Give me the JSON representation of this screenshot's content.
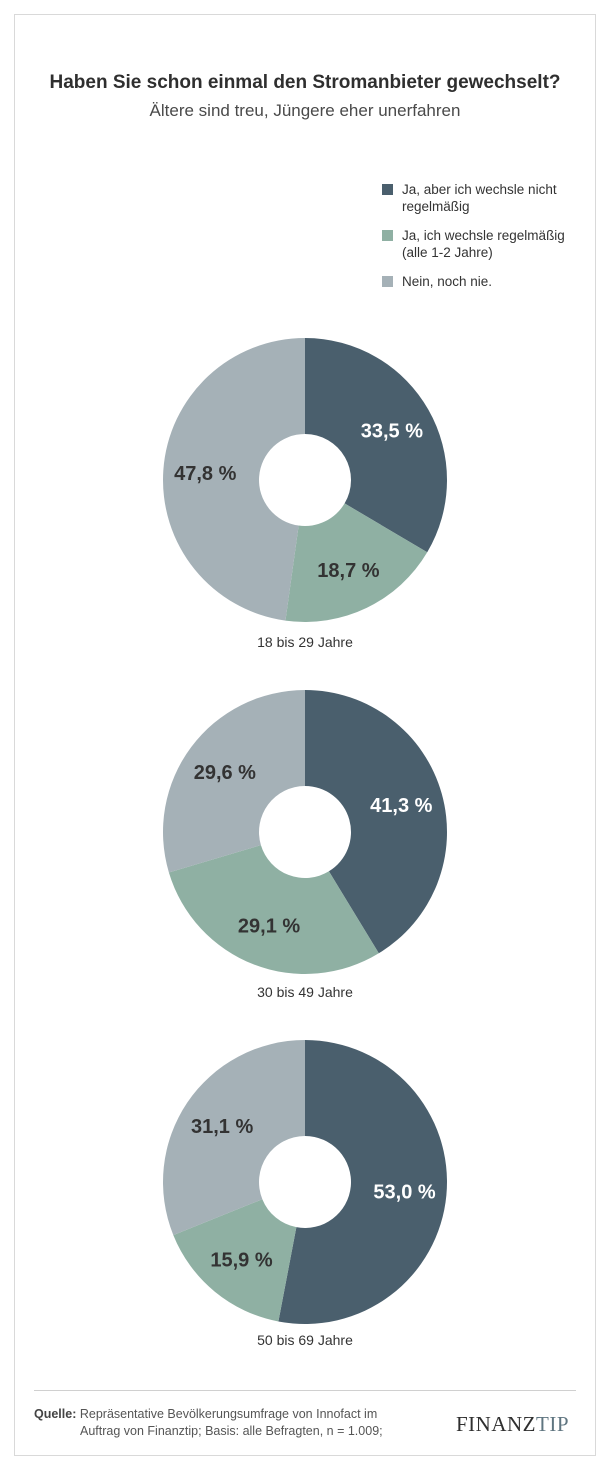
{
  "title": "Haben Sie schon einmal den Stromanbieter gewechselt?",
  "subtitle": "Ältere sind treu, Jüngere eher unerfahren",
  "legend": [
    {
      "label_line1": "Ja, aber ich wechsle nicht",
      "label_line2": "regelmäßig",
      "color": "#4a5f6d"
    },
    {
      "label_line1": "Ja, ich wechsle regelmäßig",
      "label_line2": "(alle 1-2 Jahre)",
      "color": "#8fb0a3"
    },
    {
      "label_line1": "Nein, noch nie.",
      "label_line2": "",
      "color": "#a5b1b7"
    }
  ],
  "chart_data": [
    {
      "type": "pie",
      "donut": true,
      "caption": "18 bis 29 Jahre",
      "categories": [
        "Ja, aber ich wechsle nicht regelmäßig",
        "Ja, ich wechsle regelmäßig (alle 1-2 Jahre)",
        "Nein, noch nie."
      ],
      "values": [
        33.5,
        18.7,
        47.8
      ],
      "labels": [
        "33,5 %",
        "18,7 %",
        "47,8 %"
      ],
      "colors": [
        "#4a5f6d",
        "#8fb0a3",
        "#a5b1b7"
      ]
    },
    {
      "type": "pie",
      "donut": true,
      "caption": "30 bis 49 Jahre",
      "categories": [
        "Ja, aber ich wechsle nicht regelmäßig",
        "Ja, ich wechsle regelmäßig (alle 1-2 Jahre)",
        "Nein, noch nie."
      ],
      "values": [
        41.3,
        29.1,
        29.6
      ],
      "labels": [
        "41,3 %",
        "29,1 %",
        "29,6 %"
      ],
      "colors": [
        "#4a5f6d",
        "#8fb0a3",
        "#a5b1b7"
      ]
    },
    {
      "type": "pie",
      "donut": true,
      "caption": "50 bis 69 Jahre",
      "categories": [
        "Ja, aber ich wechsle nicht regelmäßig",
        "Ja, ich wechsle regelmäßig (alle 1-2 Jahre)",
        "Nein, noch nie."
      ],
      "values": [
        53.0,
        15.9,
        31.1
      ],
      "labels": [
        "53,0 %",
        "15,9 %",
        "31,1 %"
      ],
      "colors": [
        "#4a5f6d",
        "#8fb0a3",
        "#a5b1b7"
      ]
    }
  ],
  "footer": {
    "source_label": "Quelle:",
    "source_line1": "Repräsentative Bevölkerungsumfrage von Innofact im",
    "source_line2": "Auftrag von Finanztip; Basis: alle Befragten, n = 1.009;",
    "brand_main": "FINANZ",
    "brand_tip": "TIP"
  }
}
